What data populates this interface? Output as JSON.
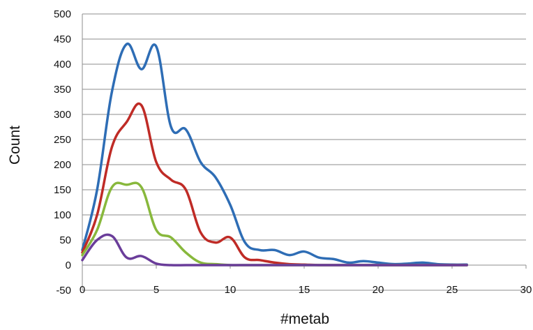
{
  "chart_data": {
    "type": "line",
    "title": "",
    "xlabel": "#metab",
    "ylabel": "Count",
    "xlim": [
      0,
      30
    ],
    "ylim": [
      -50,
      500
    ],
    "xticks": [
      0,
      5,
      10,
      15,
      20,
      25,
      30
    ],
    "yticks": [
      -50,
      0,
      50,
      100,
      150,
      200,
      250,
      300,
      350,
      400,
      450,
      500
    ],
    "grid": "horizontal",
    "legend": "none",
    "series": [
      {
        "color": "#2e6db5",
        "x": [
          0,
          1,
          2,
          3,
          4,
          5,
          6,
          7,
          8,
          9,
          10,
          11,
          12,
          13,
          14,
          15,
          16,
          17,
          18,
          19,
          20,
          21,
          22,
          23,
          24,
          25,
          26
        ],
        "y": [
          30,
          150,
          345,
          440,
          390,
          435,
          275,
          270,
          205,
          175,
          120,
          45,
          30,
          30,
          20,
          27,
          15,
          12,
          5,
          8,
          5,
          2,
          3,
          5,
          2,
          1,
          1
        ]
      },
      {
        "color": "#bf2b26",
        "x": [
          0,
          1,
          2,
          3,
          4,
          5,
          6,
          7,
          8,
          9,
          10,
          11,
          12,
          13,
          14,
          15,
          16,
          17,
          18,
          19,
          20,
          21,
          22,
          23,
          24,
          25,
          26
        ],
        "y": [
          25,
          100,
          235,
          285,
          318,
          205,
          170,
          150,
          65,
          45,
          55,
          15,
          10,
          5,
          2,
          1,
          0,
          0,
          0,
          0,
          0,
          0,
          0,
          0,
          0,
          0,
          0
        ]
      },
      {
        "color": "#88b83c",
        "x": [
          0,
          1,
          2,
          3,
          4,
          5,
          6,
          7,
          8,
          9,
          10,
          11,
          12,
          13,
          14,
          15,
          16,
          17,
          18,
          19,
          20,
          21,
          22,
          23,
          24,
          25,
          26
        ],
        "y": [
          20,
          70,
          155,
          160,
          155,
          70,
          55,
          25,
          5,
          2,
          0,
          0,
          0,
          0,
          0,
          0,
          0,
          0,
          0,
          0,
          0,
          0,
          0,
          0,
          0,
          0,
          0
        ]
      },
      {
        "color": "#6a3d9a",
        "x": [
          0,
          1,
          2,
          3,
          4,
          5,
          6,
          7,
          8,
          9,
          10,
          11,
          12,
          13,
          14,
          15,
          16,
          17,
          18,
          19,
          20,
          21,
          22,
          23,
          24,
          25,
          26
        ],
        "y": [
          10,
          50,
          58,
          15,
          18,
          3,
          0,
          0,
          0,
          0,
          0,
          0,
          0,
          0,
          0,
          0,
          0,
          0,
          0,
          0,
          0,
          0,
          0,
          0,
          0,
          0,
          0
        ]
      }
    ]
  }
}
